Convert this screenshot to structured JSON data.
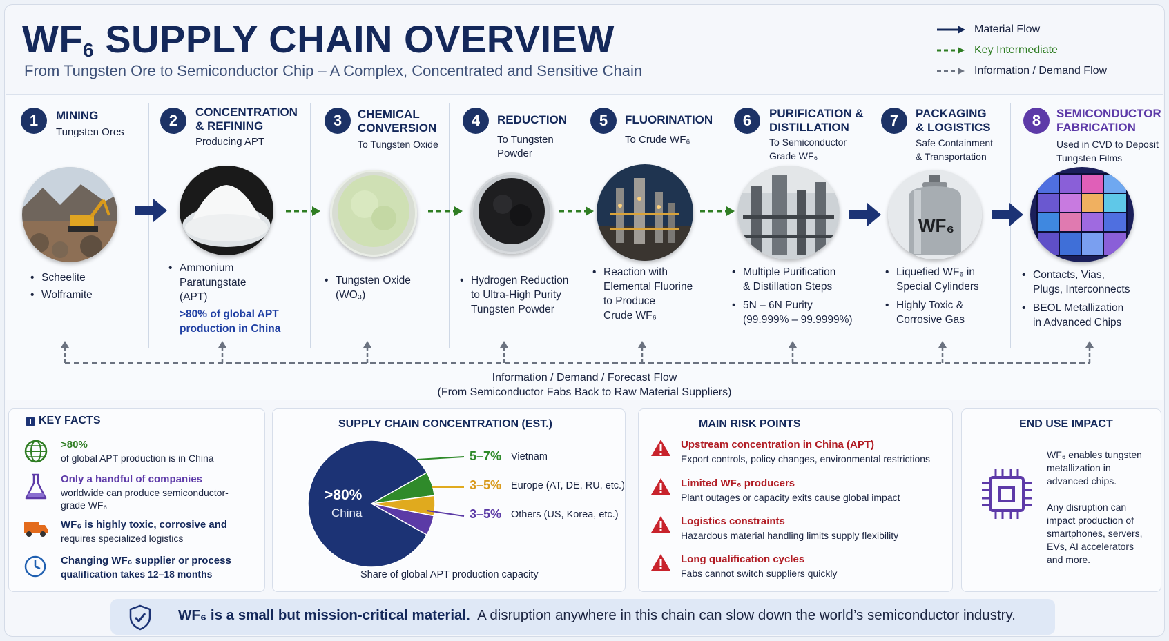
{
  "header": {
    "title_main": "WF",
    "title_sub": "6",
    "title_rest": " SUPPLY CHAIN OVERVIEW",
    "subtitle": "From Tungsten Ore to Semiconductor Chip – A Complex, Concentrated and Sensitive Chain"
  },
  "legend": [
    {
      "label": "Material Flow",
      "style": "solid",
      "color": "#14285a"
    },
    {
      "label": "Key Intermediate",
      "style": "dashed",
      "color": "#2f7d23"
    },
    {
      "label": "Information / Demand Flow",
      "style": "dashed",
      "color": "#6b7280"
    }
  ],
  "stages": [
    {
      "num": "1",
      "title": [
        "MINING"
      ],
      "sub": [
        "Tungsten Ores"
      ],
      "image": "mining-excavator",
      "bullets": [
        "Scheelite",
        "Wolframite"
      ],
      "highlight": []
    },
    {
      "num": "2",
      "title": [
        "CONCENTRATION",
        "& REFINING"
      ],
      "sub": [
        "Producing APT"
      ],
      "image": "white-powder-dish",
      "bullets": [
        "Ammonium",
        "Paratungstate",
        "(APT)"
      ],
      "highlight": [
        ">80% of global APT",
        "production in China"
      ]
    },
    {
      "num": "3",
      "title": [
        "CHEMICAL",
        "CONVERSION"
      ],
      "sub": [
        "To Tungsten Oxide"
      ],
      "image": "green-powder-dish",
      "bullets": [
        "Tungsten Oxide",
        "(WO₃)"
      ],
      "highlight": []
    },
    {
      "num": "4",
      "title": [
        "REDUCTION"
      ],
      "sub": [
        "To Tungsten",
        "Powder"
      ],
      "image": "black-powder-dish",
      "bullets": [
        "Hydrogen Reduction",
        "to Ultra-High Purity",
        "Tungsten Powder"
      ],
      "highlight": []
    },
    {
      "num": "5",
      "title": [
        "FLUORINATION"
      ],
      "sub": [
        "To Crude WF₆"
      ],
      "image": "chemical-plant",
      "bullets": [
        "Reaction with",
        "Elemental Fluorine",
        "to Produce",
        "Crude WF₆"
      ],
      "highlight": []
    },
    {
      "num": "6",
      "title": [
        "PURIFICATION &",
        "DISTILLATION"
      ],
      "sub": [
        "To Semiconductor",
        "Grade WF₆"
      ],
      "image": "distillation-columns",
      "bullets": [
        "Multiple Purification",
        "& Distillation Steps",
        "5N – 6N Purity",
        "(99.999% – 99.9999%)"
      ],
      "highlight": []
    },
    {
      "num": "7",
      "title": [
        "PACKAGING",
        "& LOGISTICS"
      ],
      "sub": [
        "Safe Containment",
        "& Transportation"
      ],
      "image": "gas-cylinder",
      "cylinder_label": "WF₆",
      "bullets": [
        "Liquefied WF₆ in",
        "Special Cylinders",
        "Highly Toxic &",
        "Corrosive Gas"
      ],
      "highlight": []
    },
    {
      "num": "8",
      "title": [
        "SEMICONDUCTOR",
        "FABRICATION"
      ],
      "sub": [
        "Used in CVD to Deposit",
        "Tungsten Films"
      ],
      "image": "silicon-wafer",
      "bullets": [
        "Contacts, Vias,",
        "Plugs, Interconnects",
        "BEOL Metallization",
        "in Advanced Chips"
      ],
      "highlight": []
    }
  ],
  "feedback": {
    "line1": "Information / Demand / Forecast Flow",
    "line2": "(From Semiconductor Fabs Back to Raw Material Suppliers)"
  },
  "key_facts": {
    "title": "KEY FACTS",
    "items": [
      {
        "icon": "globe-icon",
        "head": ">80%",
        "text": "of global APT production is in China"
      },
      {
        "icon": "flask-icon",
        "head": "Only a handful of companies",
        "text": "worldwide can produce semiconductor-grade WF₆"
      },
      {
        "icon": "truck-icon",
        "head": "WF₆ is highly toxic, corrosive and",
        "text": "requires specialized logistics"
      },
      {
        "icon": "clock-icon",
        "head": "Changing WF₆ supplier or process",
        "text": "qualification takes 12–18 months"
      }
    ]
  },
  "concentration": {
    "title": "SUPPLY CHAIN CONCENTRATION (EST.)",
    "caption": "Share of global APT production capacity",
    "center_pct": ">80%",
    "center_label": "China"
  },
  "chart_data": {
    "type": "pie",
    "title": "SUPPLY CHAIN CONCENTRATION (EST.)",
    "caption": "Share of global APT production capacity",
    "slices": [
      {
        "name": "China",
        "label": ">80%",
        "value": 82,
        "color": "#1c3375"
      },
      {
        "name": "Vietnam",
        "label": "5–7%",
        "value": 6,
        "color": "#2f8a2a"
      },
      {
        "name": "Europe (AT, DE, RU, etc.)",
        "label": "3–5%",
        "value": 5,
        "color": "#e0aa1e"
      },
      {
        "name": "Others (US, Korea, etc.)",
        "label": "3–5%",
        "value": 5,
        "color": "#5b3aa6"
      }
    ]
  },
  "risks": {
    "title": "MAIN RISK POINTS",
    "items": [
      {
        "head": "Upstream concentration in China (APT)",
        "text": "Export controls, policy changes, environmental restrictions"
      },
      {
        "head": "Limited WF₆ producers",
        "text": "Plant outages or capacity exits cause global impact"
      },
      {
        "head": "Logistics constraints",
        "text": "Hazardous material handling limits supply flexibility"
      },
      {
        "head": "Long qualification cycles",
        "text": "Fabs cannot switch suppliers quickly"
      }
    ]
  },
  "end_use": {
    "title": "END USE IMPACT",
    "p1": [
      "WF₆ enables tungsten",
      "metallization in",
      "advanced chips."
    ],
    "p2": [
      "Any disruption can",
      "impact production of",
      "smartphones, servers,",
      "EVs, AI accelerators",
      "and more."
    ]
  },
  "banner": {
    "bold": "WF₆ is a small but mission-critical material.",
    "rest": "A disruption anywhere in this chain can slow down the world’s semiconductor industry."
  },
  "colors": {
    "navy": "#14285a",
    "green": "#2f7d23",
    "purple": "#5d3aa8",
    "red": "#b11c24",
    "gray": "#6b7280"
  }
}
